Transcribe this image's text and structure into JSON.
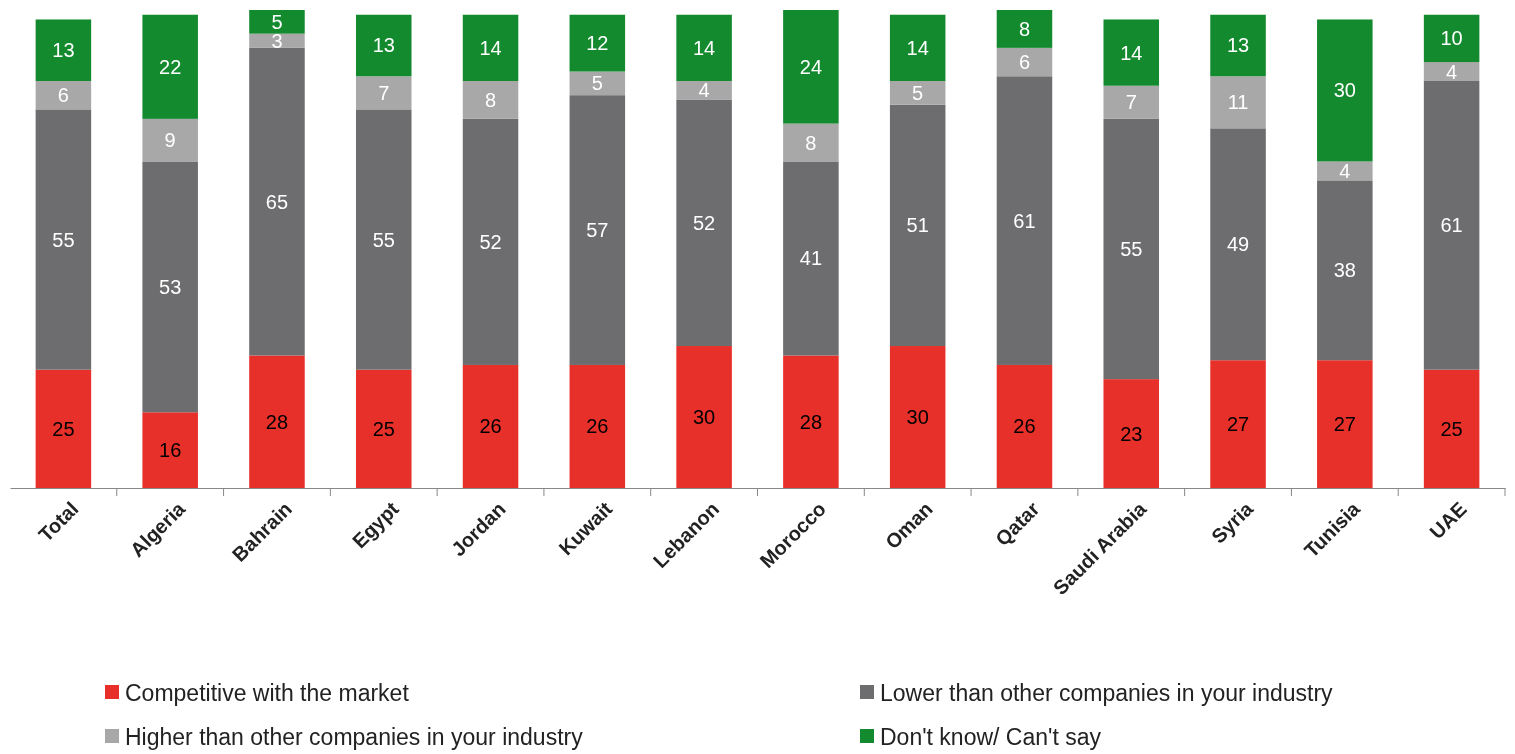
{
  "chart_data": {
    "type": "bar",
    "stacked": true,
    "data_labels": true,
    "legend": "bottom",
    "tick_labels": "x",
    "grid": false,
    "ylim": [
      0,
      101
    ],
    "categories": [
      "Total",
      "Algeria",
      "Bahrain",
      "Egypt",
      "Jordan",
      "Kuwait",
      "Lebanon",
      "Morocco",
      "Oman",
      "Qatar",
      "Saudi Arabia",
      "Syria",
      "Tunisia",
      "UAE"
    ],
    "series": [
      {
        "name": "Competitive with the market",
        "color": "#e8302a",
        "values": [
          25,
          16,
          28,
          25,
          26,
          26,
          30,
          28,
          30,
          26,
          23,
          27,
          27,
          25
        ]
      },
      {
        "name": "Lower than other companies in your industry",
        "color": "#6d6d6f",
        "values": [
          55,
          53,
          65,
          55,
          52,
          57,
          52,
          41,
          51,
          61,
          55,
          49,
          38,
          61
        ]
      },
      {
        "name": "Higher than other companies in your industry",
        "color": "#a8a8a8",
        "values": [
          6,
          9,
          3,
          7,
          8,
          5,
          4,
          8,
          5,
          6,
          7,
          11,
          4,
          4
        ]
      },
      {
        "name": "Don't know/ Can't say",
        "color": "#138a2e",
        "values": [
          13,
          22,
          5,
          13,
          14,
          12,
          14,
          24,
          14,
          8,
          14,
          13,
          30,
          10
        ]
      }
    ]
  }
}
